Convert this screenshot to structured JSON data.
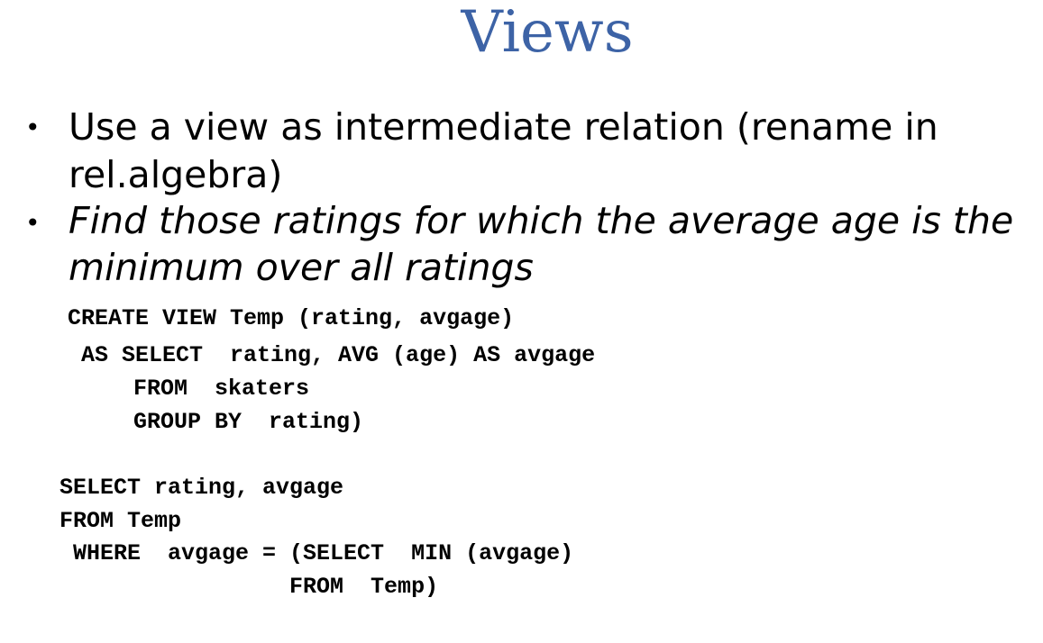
{
  "slide": {
    "title": "Views",
    "bullets": [
      {
        "marker": "•",
        "lines": [
          "Use a view as intermediate relation (rename in",
          "rel.algebra)"
        ]
      },
      {
        "marker": "•",
        "lines": [
          "Find those ratings for which the average age is the",
          "minimum over all ratings"
        ]
      }
    ],
    "code_view": [
      "CREATE VIEW Temp (rating, avgage)",
      " AS SELECT  rating, AVG (age) AS avgage",
      "    FROM  skaters",
      "    GROUP BY  rating)"
    ],
    "code_query": [
      "SELECT rating, avgage",
      "FROM Temp",
      " WHERE  avgage = (SELECT  MIN (avgage)",
      "                 FROM  Temp)"
    ]
  }
}
